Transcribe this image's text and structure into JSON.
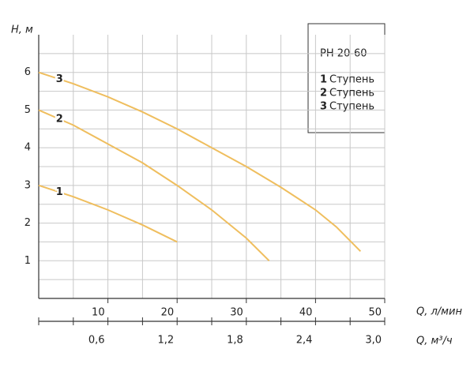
{
  "chart_data": {
    "type": "line",
    "title": "PH 20-60",
    "y_label": "H, м",
    "x_label": "Q, л/мин",
    "x2_label": "Q, м³/ч",
    "xlim": [
      0,
      50
    ],
    "xticks": [
      10,
      20,
      30,
      40,
      50
    ],
    "x_minor_grid": [
      5,
      15,
      25,
      35,
      45
    ],
    "ylim": [
      0,
      7
    ],
    "yticks": [
      1,
      2,
      3,
      4,
      5,
      6
    ],
    "y_minor_grid": [
      0.5,
      1.5,
      2.5,
      3.5,
      4.5,
      5.5,
      6.5
    ],
    "x2lim": [
      0,
      3
    ],
    "x2ticks": [
      {
        "value": 0.6,
        "label": "0,6"
      },
      {
        "value": 1.2,
        "label": "1,2"
      },
      {
        "value": 1.8,
        "label": "1,8"
      },
      {
        "value": 2.4,
        "label": "2,4"
      },
      {
        "value": 3,
        "label": "3,0"
      }
    ],
    "x2_minor_ticks": [
      0.3,
      0.9,
      1.5,
      2.1,
      2.7
    ],
    "grid": true,
    "color": "#efbe5e",
    "series": [
      {
        "label": "1",
        "name": "Ступень",
        "x": [
          0,
          5,
          10,
          15,
          20
        ],
        "values": [
          3.0,
          2.7,
          2.35,
          1.95,
          1.5
        ]
      },
      {
        "label": "2",
        "name": "Ступень",
        "x": [
          0,
          5,
          10,
          15,
          20,
          25,
          30,
          33.3
        ],
        "values": [
          5.0,
          4.6,
          4.1,
          3.6,
          3.0,
          2.35,
          1.6,
          1.0
        ]
      },
      {
        "label": "3",
        "name": "Ступень",
        "x": [
          0,
          5,
          10,
          15,
          20,
          25,
          30,
          35,
          40,
          43,
          46.5
        ],
        "values": [
          6.0,
          5.7,
          5.35,
          4.95,
          4.5,
          4.0,
          3.5,
          2.95,
          2.35,
          1.9,
          1.25
        ]
      }
    ]
  }
}
